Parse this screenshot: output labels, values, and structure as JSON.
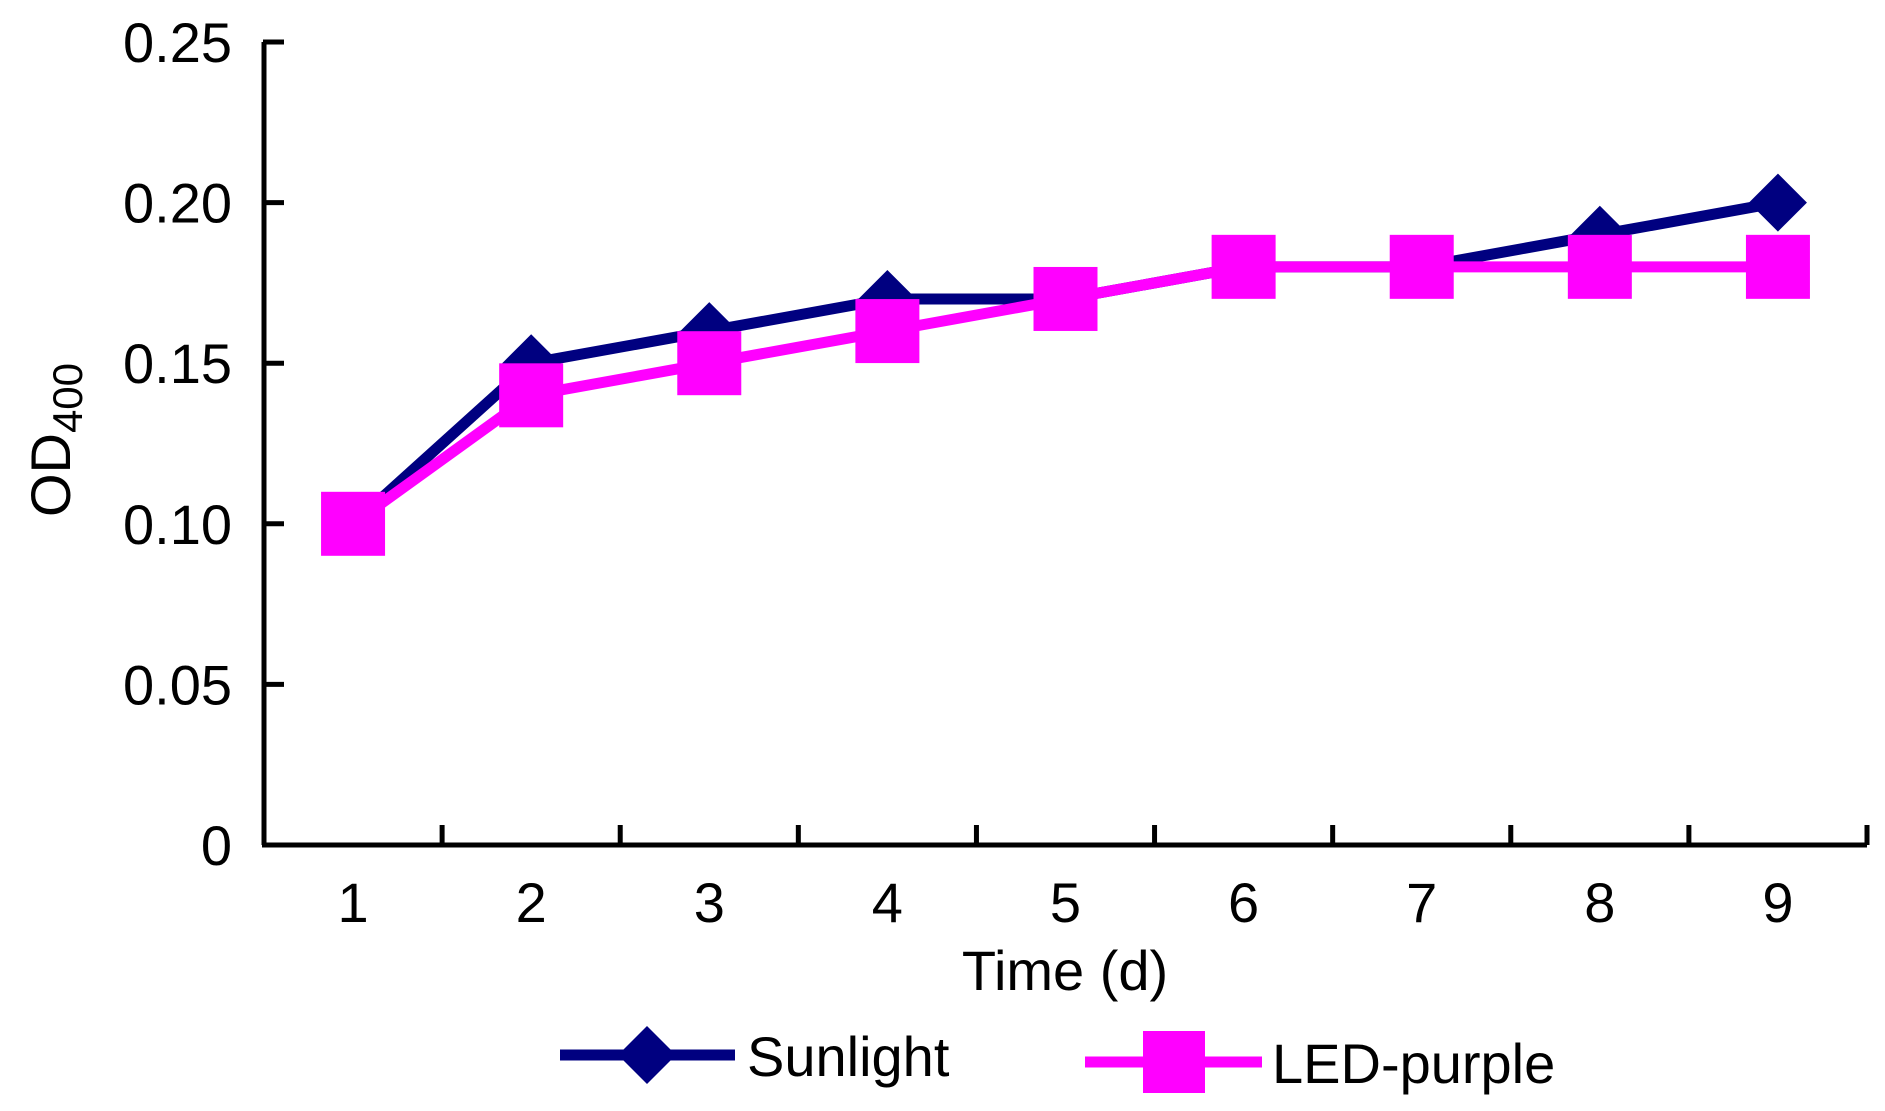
{
  "chart_data": {
    "type": "line",
    "x": [
      1,
      2,
      3,
      4,
      5,
      6,
      7,
      8,
      9
    ],
    "xlabel": "Time (d)",
    "ylabel": {
      "main": "OD",
      "subscript": "400"
    },
    "ylim": [
      0,
      0.25
    ],
    "y_ticks": [
      "0",
      "0.05",
      "0.10",
      "0.15",
      "0.20",
      "0.25"
    ],
    "x_ticks": [
      "1",
      "2",
      "3",
      "4",
      "5",
      "6",
      "7",
      "8",
      "9"
    ],
    "grid": false,
    "legend_position": "bottom",
    "series": [
      {
        "name": "Sunlight",
        "marker": "diamond",
        "color": "#000080",
        "values": [
          0.1,
          0.15,
          0.16,
          0.17,
          0.17,
          0.18,
          0.18,
          0.19,
          0.2
        ]
      },
      {
        "name": "LED-purple",
        "marker": "square",
        "color": "#ff00ff",
        "values": [
          0.1,
          0.14,
          0.15,
          0.16,
          0.17,
          0.18,
          0.18,
          0.18,
          0.18
        ]
      }
    ]
  }
}
